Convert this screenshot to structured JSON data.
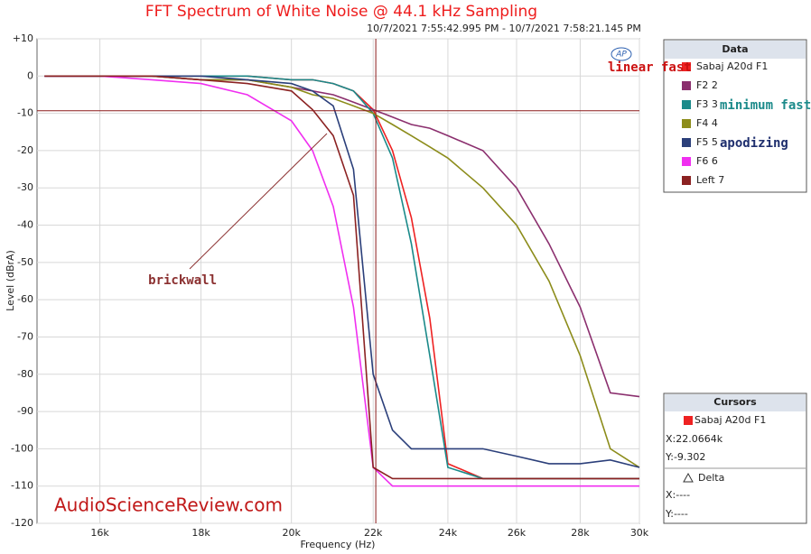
{
  "chart_data": {
    "type": "line",
    "title": "FFT Spectrum of White Noise @ 44.1 kHz Sampling",
    "subtitle": "10/7/2021 7:55:42.995 PM - 10/7/2021 7:58:21.145 PM",
    "x_label": "Frequency (Hz)",
    "y_label": "Level (dBrA)",
    "x_scale": "log",
    "grid": true,
    "xlim": [
      14870,
      30000
    ],
    "ylim": [
      -120,
      10
    ],
    "xticks": [
      {
        "value": 16000,
        "label": "16k"
      },
      {
        "value": 18000,
        "label": "18k"
      },
      {
        "value": 20000,
        "label": "20k"
      },
      {
        "value": 22000,
        "label": "22k"
      },
      {
        "value": 24000,
        "label": "24k"
      },
      {
        "value": 26000,
        "label": "26k"
      },
      {
        "value": 28000,
        "label": "28k"
      },
      {
        "value": 30000,
        "label": "30k"
      }
    ],
    "yticks": [
      {
        "value": 10,
        "label": "+10"
      },
      0,
      -10,
      -20,
      -30,
      -40,
      -50,
      -60,
      -70,
      -80,
      -90,
      -100,
      -110,
      -120
    ],
    "x": [
      15000,
      16000,
      17000,
      18000,
      19000,
      20000,
      20500,
      21000,
      21500,
      22000,
      22500,
      23000,
      23500,
      24000,
      25000,
      26000,
      27000,
      28000,
      29000,
      30000
    ],
    "series": [
      {
        "name": "Sabaj A20d F1",
        "color": "#ee2222",
        "values": [
          0,
          0,
          0,
          0,
          0,
          -1,
          -1,
          -2,
          -4,
          -9,
          -20,
          -38,
          -65,
          -104,
          -108,
          -108,
          -108,
          -108,
          -108,
          -108
        ]
      },
      {
        "name": "F2 2",
        "color": "#8b2f6e",
        "values": [
          0,
          0,
          0,
          -1,
          -1,
          -3,
          -4,
          -5,
          -7,
          -9,
          -11,
          -13,
          -14,
          -16,
          -20,
          -30,
          -45,
          -62,
          -85,
          -86
        ]
      },
      {
        "name": "F3 3",
        "color": "#1b8a8a",
        "values": [
          0,
          0,
          0,
          0,
          0,
          -1,
          -1,
          -2,
          -4,
          -10,
          -22,
          -45,
          -75,
          -105,
          -108,
          -108,
          -108,
          -108,
          -108,
          -108
        ]
      },
      {
        "name": "F4 4",
        "color": "#8c8c1a",
        "values": [
          0,
          0,
          0,
          -1,
          -1,
          -3,
          -5,
          -6,
          -8,
          -10,
          -13,
          -16,
          -19,
          -22,
          -30,
          -40,
          -55,
          -75,
          -100,
          -105
        ]
      },
      {
        "name": "F5 5",
        "color": "#2b3f7a",
        "values": [
          0,
          0,
          0,
          0,
          -1,
          -2,
          -4,
          -8,
          -25,
          -80,
          -95,
          -100,
          -100,
          -100,
          -100,
          -102,
          -104,
          -104,
          -103,
          -105
        ]
      },
      {
        "name": "F6 6",
        "color": "#f02ff0",
        "values": [
          0,
          0,
          -1,
          -2,
          -5,
          -12,
          -20,
          -35,
          -62,
          -105,
          -110,
          -110,
          -110,
          -110,
          -110,
          -110,
          -110,
          -110,
          -110,
          -110
        ]
      },
      {
        "name": "Left 7",
        "color": "#8b2222",
        "values": [
          0,
          0,
          0,
          -1,
          -2,
          -4,
          -9,
          -16,
          -32,
          -105,
          -108,
          -108,
          -108,
          -108,
          -108,
          -108,
          -108,
          -108,
          -108,
          -108
        ]
      }
    ],
    "legend_title": "Data",
    "annotations": [
      {
        "text": "linear fast",
        "color": "#cc1111"
      },
      {
        "text": "minimum fast",
        "color": "#1b8a8a"
      },
      {
        "text": "apodizing",
        "color": "#1f2f6e"
      },
      {
        "text": "brickwall",
        "color": "#8b3030"
      }
    ],
    "watermark": "AudioScienceReview.com",
    "cursor": {
      "x": 22066.4,
      "y": -9.302,
      "color": "#8b1a1a"
    },
    "cursors_panel": {
      "title": "Cursors",
      "series": "Sabaj A20d F1",
      "x_text": "X:22.0664k",
      "y_text": "Y:-9.302",
      "delta": "Delta",
      "dx_text": "X:----",
      "dy_text": "Y:----"
    }
  }
}
